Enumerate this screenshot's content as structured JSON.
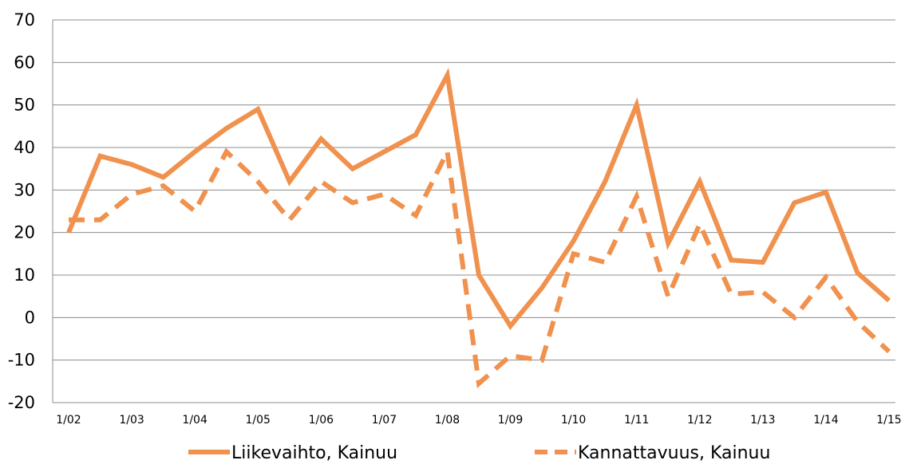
{
  "chart_data": {
    "type": "line",
    "title": "",
    "xlabel": "",
    "ylabel": "",
    "ylim": [
      -20,
      70
    ],
    "yticks": [
      70,
      60,
      50,
      40,
      30,
      20,
      10,
      0,
      -10,
      -20
    ],
    "ytick_labels": [
      "70",
      "60",
      "50",
      "40",
      "30",
      "20",
      "10",
      "0",
      "-10",
      "-20"
    ],
    "xtick_labels": [
      "1/02",
      "1/03",
      "1/04",
      "1/05",
      "1/06",
      "1/07",
      "1/08",
      "1/09",
      "1/10",
      "1/11",
      "1/12",
      "1/13",
      "1/14",
      "1/15"
    ],
    "x": [
      "1/02",
      "7/02",
      "1/03",
      "7/03",
      "1/04",
      "7/04",
      "1/05",
      "7/05",
      "1/06",
      "7/06",
      "1/07",
      "7/07",
      "1/08",
      "7/08",
      "1/09",
      "7/09",
      "1/10",
      "7/10",
      "1/11",
      "7/11",
      "1/12",
      "7/12",
      "1/13",
      "7/13",
      "1/14",
      "7/14",
      "1/15"
    ],
    "grid": true,
    "legend_position": "bottom",
    "series": [
      {
        "name": "Liikevaihto, Kainuu",
        "style": "solid",
        "color": "#F0914E",
        "values": [
          20,
          38,
          36,
          33,
          39,
          44.5,
          49,
          32,
          42,
          35,
          39,
          43,
          57,
          10,
          -2,
          7,
          18,
          32,
          50,
          17.5,
          32,
          13.5,
          13,
          27,
          29.5,
          10.5,
          4
        ]
      },
      {
        "name": "Kannattavuus, Kainuu",
        "style": "dashed",
        "color": "#F0914E",
        "values": [
          23,
          23,
          29,
          31,
          25,
          39,
          32,
          23,
          32,
          27,
          29,
          24,
          39,
          -15.5,
          -9,
          -10,
          15,
          13,
          28.5,
          5,
          22,
          5.5,
          6,
          0,
          9.5,
          -1,
          -8
        ]
      }
    ]
  }
}
